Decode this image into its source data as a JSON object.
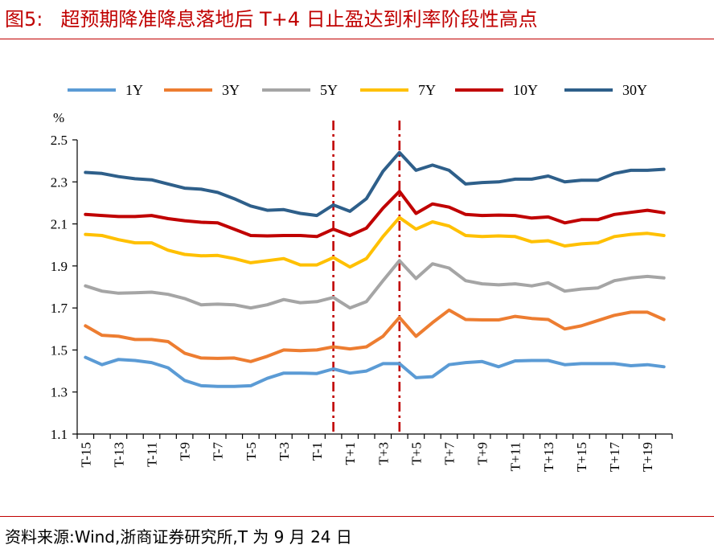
{
  "header": {
    "figure_label": "图5:",
    "title": "超预期降准降息落地后 T+4 日止盈达到利率阶段性高点"
  },
  "footer": {
    "source": "资料来源:Wind,浙商证券研究所,T 为 9 月 24 日"
  },
  "chart_data": {
    "type": "line",
    "ylabel": "%",
    "ylim": [
      1.1,
      2.5
    ],
    "yticks": [
      "1.1",
      "1.3",
      "1.5",
      "1.7",
      "1.9",
      "2.1",
      "2.3",
      "2.5"
    ],
    "x": [
      "T-15",
      "T-14",
      "T-13",
      "T-12",
      "T-11",
      "T-10",
      "T-9",
      "T-8",
      "T-7",
      "T-6",
      "T-5",
      "T-4",
      "T-3",
      "T-2",
      "T-1",
      "T",
      "T+1",
      "T+2",
      "T+3",
      "T+4",
      "T+5",
      "T+6",
      "T+7",
      "T+8",
      "T+9",
      "T+10",
      "T+11",
      "T+12",
      "T+13",
      "T+14",
      "T+15",
      "T+16",
      "T+17",
      "T+18",
      "T+19",
      "T+20"
    ],
    "x_tick_labels": [
      "T-15",
      "T-13",
      "T-11",
      "T-9",
      "T-7",
      "T-5",
      "T-3",
      "T-1",
      "T+1",
      "T+3",
      "T+5",
      "T+7",
      "T+9",
      "T+11",
      "T+13",
      "T+15",
      "T+17",
      "T+19"
    ],
    "vertical_markers": [
      "T",
      "T+4"
    ],
    "legend_position": "top",
    "series": [
      {
        "name": "1Y",
        "color": "#5b9bd5",
        "values": [
          1.465,
          1.43,
          1.455,
          1.45,
          1.44,
          1.415,
          1.355,
          1.33,
          1.327,
          1.327,
          1.33,
          1.365,
          1.39,
          1.39,
          1.388,
          1.41,
          1.39,
          1.4,
          1.435,
          1.435,
          1.368,
          1.373,
          1.43,
          1.44,
          1.445,
          1.42,
          1.448,
          1.45,
          1.45,
          1.43,
          1.435,
          1.435,
          1.435,
          1.425,
          1.43,
          1.42
        ]
      },
      {
        "name": "3Y",
        "color": "#ed7d31",
        "values": [
          1.615,
          1.57,
          1.565,
          1.55,
          1.55,
          1.54,
          1.485,
          1.462,
          1.46,
          1.462,
          1.445,
          1.47,
          1.5,
          1.497,
          1.5,
          1.515,
          1.505,
          1.515,
          1.565,
          1.655,
          1.565,
          1.63,
          1.69,
          1.645,
          1.643,
          1.643,
          1.66,
          1.65,
          1.645,
          1.6,
          1.615,
          1.64,
          1.665,
          1.68,
          1.68,
          1.645
        ]
      },
      {
        "name": "5Y",
        "color": "#a5a5a5",
        "values": [
          1.805,
          1.78,
          1.77,
          1.772,
          1.775,
          1.765,
          1.745,
          1.715,
          1.718,
          1.715,
          1.7,
          1.715,
          1.74,
          1.725,
          1.73,
          1.75,
          1.7,
          1.73,
          1.83,
          1.925,
          1.84,
          1.91,
          1.89,
          1.83,
          1.815,
          1.81,
          1.815,
          1.805,
          1.82,
          1.78,
          1.79,
          1.795,
          1.83,
          1.843,
          1.85,
          1.843
        ]
      },
      {
        "name": "7Y",
        "color": "#ffc000",
        "values": [
          2.05,
          2.045,
          2.025,
          2.01,
          2.01,
          1.975,
          1.955,
          1.948,
          1.95,
          1.935,
          1.915,
          1.925,
          1.935,
          1.905,
          1.905,
          1.94,
          1.895,
          1.935,
          2.04,
          2.13,
          2.075,
          2.11,
          2.09,
          2.045,
          2.04,
          2.043,
          2.04,
          2.015,
          2.02,
          1.995,
          2.005,
          2.01,
          2.04,
          2.05,
          2.055,
          2.045
        ]
      },
      {
        "name": "10Y",
        "color": "#c00000",
        "values": [
          2.145,
          2.14,
          2.135,
          2.135,
          2.14,
          2.125,
          2.115,
          2.108,
          2.105,
          2.075,
          2.045,
          2.043,
          2.045,
          2.045,
          2.04,
          2.075,
          2.045,
          2.08,
          2.175,
          2.255,
          2.15,
          2.195,
          2.18,
          2.145,
          2.14,
          2.142,
          2.14,
          2.128,
          2.133,
          2.105,
          2.12,
          2.12,
          2.145,
          2.155,
          2.165,
          2.153
        ]
      },
      {
        "name": "30Y",
        "color": "#2e5f8a",
        "values": [
          2.345,
          2.34,
          2.325,
          2.315,
          2.31,
          2.29,
          2.27,
          2.265,
          2.25,
          2.22,
          2.185,
          2.165,
          2.168,
          2.15,
          2.14,
          2.19,
          2.16,
          2.22,
          2.35,
          2.44,
          2.355,
          2.38,
          2.355,
          2.29,
          2.297,
          2.3,
          2.313,
          2.313,
          2.328,
          2.3,
          2.308,
          2.308,
          2.34,
          2.355,
          2.355,
          2.36
        ]
      }
    ]
  }
}
